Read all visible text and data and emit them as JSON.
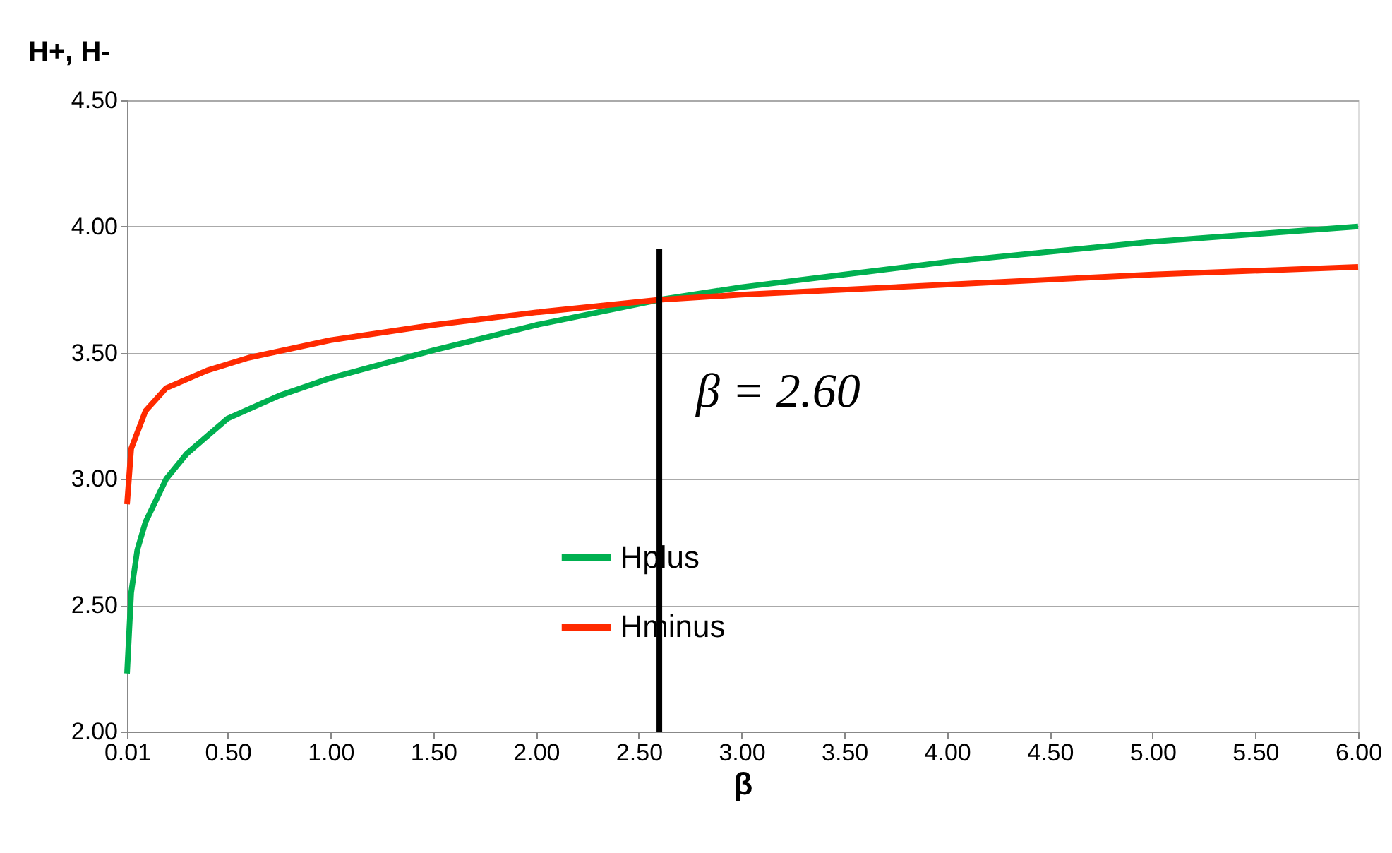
{
  "chart_data": {
    "type": "line",
    "xlabel": "β",
    "ylabel": "H+, H-",
    "xlim": [
      0.01,
      6
    ],
    "ylim": [
      2,
      4.5
    ],
    "xticks": [
      0.01,
      {
        "value": 0.5,
        "label": "0.50"
      },
      {
        "value": 1,
        "label": "1.00"
      },
      {
        "value": 1.5,
        "label": "1.50"
      },
      {
        "value": 2,
        "label": "2.00"
      },
      {
        "value": 2.5,
        "label": "2.50"
      },
      {
        "value": 3,
        "label": "3.00"
      },
      {
        "value": 3.5,
        "label": "3.50"
      },
      {
        "value": 4,
        "label": "4.00"
      },
      {
        "value": 4.5,
        "label": "4.50"
      },
      {
        "value": 5,
        "label": "5.00"
      },
      {
        "value": 5.5,
        "label": "5.50"
      },
      {
        "value": 6,
        "label": "6.00"
      }
    ],
    "yticks": [
      {
        "value": 2,
        "label": "2.00"
      },
      {
        "value": 2.5,
        "label": "2.50"
      },
      {
        "value": 3,
        "label": "3.00"
      },
      {
        "value": 3.5,
        "label": "3.50"
      },
      {
        "value": 4,
        "label": "4.00"
      },
      {
        "value": 4.5,
        "label": "4.50"
      }
    ],
    "grid": "y",
    "legend": "bottom",
    "marker": "none",
    "line_style": "solid",
    "series": [
      {
        "name": "Hplus",
        "color": "#00b050",
        "x": [
          0.01,
          0.03,
          0.06,
          0.1,
          0.2,
          0.3,
          0.5,
          0.75,
          1,
          1.5,
          2,
          2.6,
          3,
          3.5,
          4,
          4.5,
          5,
          5.5,
          6
        ],
        "values": [
          2.23,
          2.55,
          2.72,
          2.83,
          3.0,
          3.1,
          3.24,
          3.33,
          3.4,
          3.51,
          3.61,
          3.71,
          3.76,
          3.81,
          3.86,
          3.9,
          3.94,
          3.97,
          4.0
        ]
      },
      {
        "name": "Hminus",
        "color": "#ff2a00",
        "x": [
          0.01,
          0.03,
          0.1,
          0.2,
          0.4,
          0.6,
          1,
          1.5,
          2,
          2.6,
          3,
          4,
          5,
          6
        ],
        "values": [
          2.9,
          3.12,
          3.27,
          3.36,
          3.43,
          3.48,
          3.55,
          3.61,
          3.66,
          3.71,
          3.73,
          3.77,
          3.81,
          3.84
        ]
      }
    ],
    "ref_lines": [
      {
        "axis": "x",
        "value": 2.6,
        "label": "β = 2.60",
        "color": "#000000",
        "line_style": "solid"
      }
    ]
  }
}
